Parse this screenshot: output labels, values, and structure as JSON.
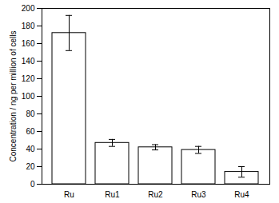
{
  "chart_data": {
    "type": "bar",
    "y_label": "Concentration / ng per million of cells",
    "categories": [
      "Ru",
      "Ru1",
      "Ru2",
      "Ru3",
      "Ru4"
    ],
    "values": [
      172,
      47,
      42,
      39,
      14
    ],
    "errors": [
      20,
      4,
      3,
      4,
      6
    ],
    "color": "#ffffff",
    "ylim": [
      0,
      200
    ],
    "yticks": [
      0,
      20,
      40,
      60,
      80,
      100,
      120,
      140,
      160,
      180,
      200
    ],
    "grid": false
  }
}
